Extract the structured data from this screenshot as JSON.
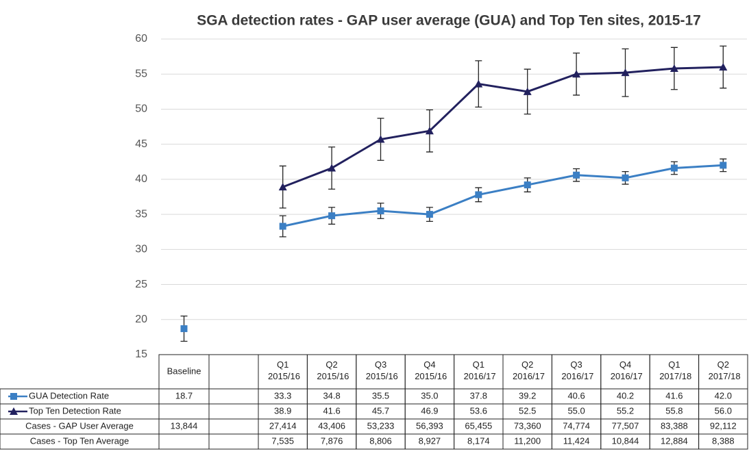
{
  "chart_data": {
    "type": "line",
    "title": "SGA detection rates - GAP user average (GUA) and Top Ten sites, 2015-17",
    "categories": [
      "Baseline",
      null,
      "Q1 2015/16",
      "Q2 2015/16",
      "Q3 2015/16",
      "Q4 2015/16",
      "Q1 2016/17",
      "Q2 2016/17",
      "Q3 2016/17",
      "Q4 2016/17",
      "Q1 2017/18",
      "Q2 2017/18"
    ],
    "series": [
      {
        "name": "GUA Detection Rate",
        "color": "#3b7fc4",
        "marker": "square",
        "values": [
          18.7,
          null,
          33.3,
          34.8,
          35.5,
          35.0,
          37.8,
          39.2,
          40.6,
          40.2,
          41.6,
          42.0
        ],
        "value_labels": [
          "18.7",
          null,
          "33.3",
          "34.8",
          "35.5",
          "35.0",
          "37.8",
          "39.2",
          "40.6",
          "40.2",
          "41.6",
          "42.0"
        ],
        "errors": [
          1.8,
          null,
          1.5,
          1.2,
          1.1,
          1.0,
          1.0,
          1.0,
          0.9,
          0.9,
          0.9,
          0.9
        ]
      },
      {
        "name": "Top Ten Detection Rate",
        "color": "#22215e",
        "marker": "triangle",
        "values": [
          null,
          null,
          38.9,
          41.6,
          45.7,
          46.9,
          53.6,
          52.5,
          55.0,
          55.2,
          55.8,
          56.0
        ],
        "value_labels": [
          null,
          null,
          "38.9",
          "41.6",
          "45.7",
          "46.9",
          "53.6",
          "52.5",
          "55.0",
          "55.2",
          "55.8",
          "56.0"
        ],
        "errors": [
          null,
          null,
          3.0,
          3.0,
          3.0,
          3.0,
          3.3,
          3.2,
          3.0,
          3.4,
          3.0,
          3.0
        ]
      }
    ],
    "table_rows": [
      {
        "name": "Cases - GAP User Average",
        "cells": [
          "13,844",
          null,
          "27,414",
          "43,406",
          "53,233",
          "56,393",
          "65,455",
          "73,360",
          "74,774",
          "77,507",
          "83,388",
          "92,112"
        ]
      },
      {
        "name": "Cases - Top Ten Average",
        "cells": [
          null,
          null,
          "7,535",
          "7,876",
          "8,806",
          "8,927",
          "8,174",
          "11,200",
          "11,424",
          "10,844",
          "12,884",
          "8,388"
        ]
      }
    ],
    "ylim": [
      15,
      60
    ],
    "yticks": [
      15,
      20,
      25,
      30,
      35,
      40,
      45,
      50,
      55,
      60
    ],
    "grid": true
  }
}
